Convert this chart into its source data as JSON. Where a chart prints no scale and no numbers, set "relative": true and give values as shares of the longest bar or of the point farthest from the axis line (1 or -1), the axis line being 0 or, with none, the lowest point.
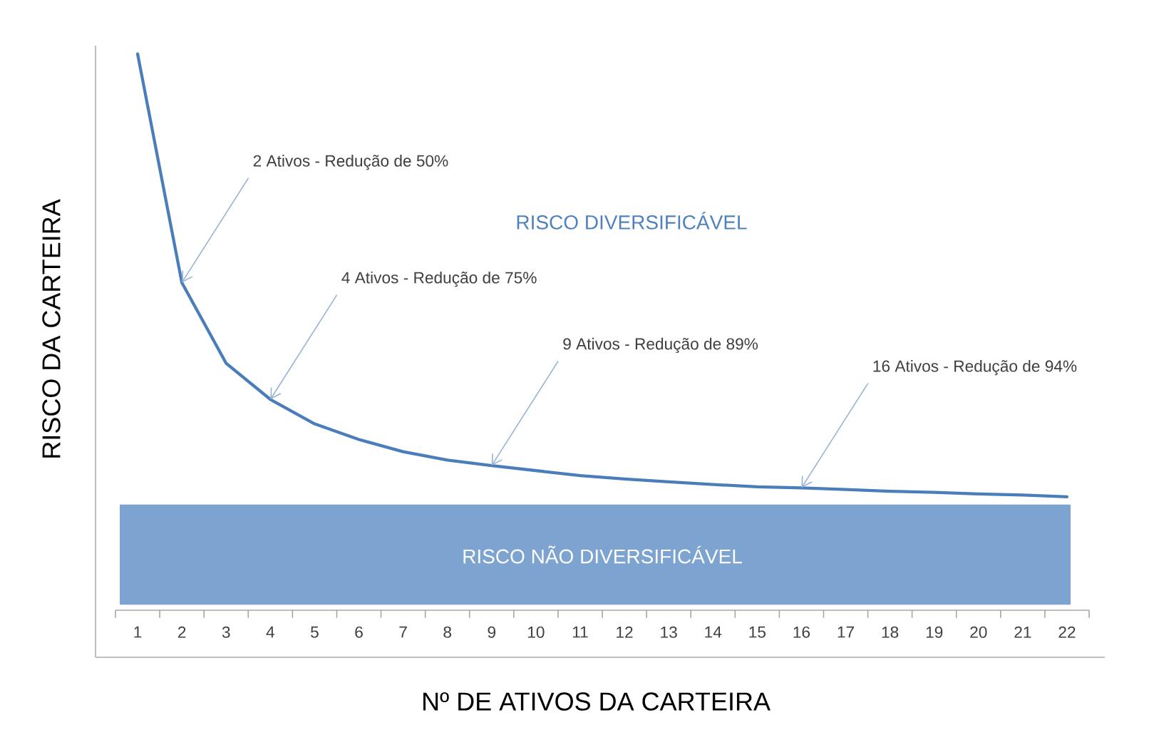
{
  "chart_data": {
    "type": "line",
    "xlabel": "Nº DE ATIVOS DA CARTEIRA",
    "ylabel": "RISCO DA CARTEIRA",
    "x": [
      1,
      2,
      3,
      4,
      5,
      6,
      7,
      8,
      9,
      10,
      11,
      12,
      13,
      14,
      15,
      16,
      17,
      18,
      19,
      20,
      21,
      22
    ],
    "xlim": [
      0.5,
      22.5
    ],
    "xticks": [
      1,
      2,
      3,
      4,
      5,
      6,
      7,
      8,
      9,
      10,
      11,
      12,
      13,
      14,
      15,
      16,
      17,
      18,
      19,
      20,
      21,
      22
    ],
    "values": [
      1.0,
      0.589,
      0.444,
      0.379,
      0.335,
      0.307,
      0.285,
      0.27,
      0.26,
      0.251,
      0.242,
      0.236,
      0.231,
      0.226,
      0.222,
      0.22,
      0.217,
      0.214,
      0.212,
      0.209,
      0.207,
      0.204
    ],
    "color": "#4a7ebb",
    "relative": true,
    "bands": [
      {
        "axis": "y",
        "from": 0.01,
        "to": 0.19,
        "label": "RISCO NÃO DIVERSIFICÁVEL",
        "color": "#7da3d0"
      }
    ],
    "annotations": [
      "RISCO DIVERSIFICÁVEL",
      {
        "text": "2 Ativos - Redução de 50%",
        "x": 2,
        "y": 0.589
      },
      {
        "text": "4 Ativos - Redução de 75%",
        "x": 4,
        "y": 0.379
      },
      {
        "text": "9 Ativos - Redução de 89%",
        "x": 9,
        "y": 0.26
      },
      {
        "text": "16 Ativos - Redução de 94%",
        "x": 16,
        "y": 0.22
      }
    ]
  }
}
